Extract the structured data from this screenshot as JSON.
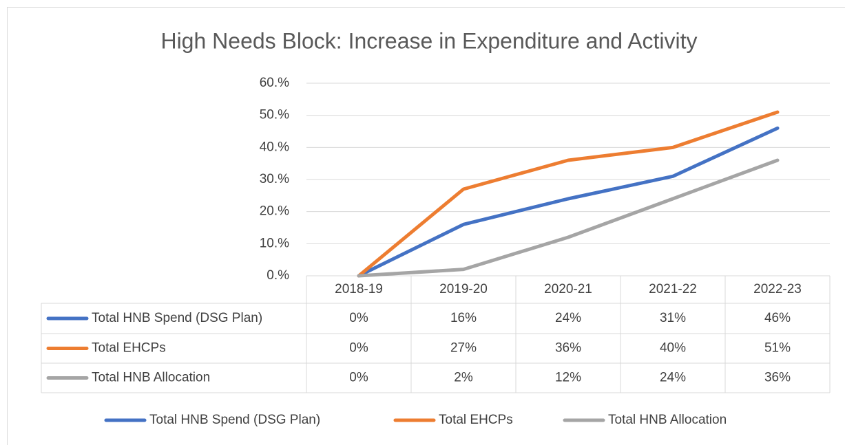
{
  "chart_data": {
    "type": "line",
    "title": "High Needs Block: Increase in Expenditure and Activity",
    "categories": [
      "2018-19",
      "2019-20",
      "2020-21",
      "2021-22",
      "2022-23"
    ],
    "series": [
      {
        "name": "Total HNB Spend (DSG Plan)",
        "color": "#4472c4",
        "values": [
          0,
          16,
          24,
          31,
          46
        ],
        "value_labels": [
          "0%",
          "16%",
          "24%",
          "31%",
          "46%"
        ]
      },
      {
        "name": "Total EHCPs",
        "color": "#ed7d31",
        "values": [
          0,
          27,
          36,
          40,
          51
        ],
        "value_labels": [
          "0%",
          "27%",
          "36%",
          "40%",
          "51%"
        ]
      },
      {
        "name": "Total HNB Allocation",
        "color": "#a5a5a5",
        "values": [
          0,
          2,
          12,
          24,
          36
        ],
        "value_labels": [
          "0%",
          "2%",
          "12%",
          "24%",
          "36%"
        ]
      }
    ],
    "ylim": [
      0,
      60
    ],
    "yticks": [
      {
        "value": 0,
        "label": "0.%"
      },
      {
        "value": 10,
        "label": "10.%"
      },
      {
        "value": 20,
        "label": "20.%"
      },
      {
        "value": 30,
        "label": "30.%"
      },
      {
        "value": 40,
        "label": "40.%"
      },
      {
        "value": 50,
        "label": "50.%"
      },
      {
        "value": 60,
        "label": "60.%"
      }
    ],
    "grid": true,
    "legend": "bottom",
    "data_table": true
  }
}
